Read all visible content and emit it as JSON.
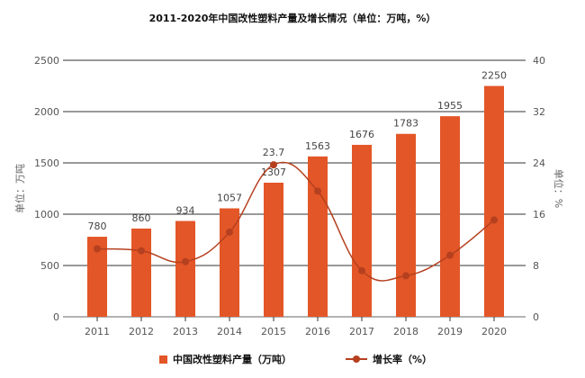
{
  "chart_data": {
    "type": "bar+line",
    "title": "2011-2020年中国改性塑料产量及增长情况（单位：万吨，%）",
    "categories": [
      "2011",
      "2012",
      "2013",
      "2014",
      "2015",
      "2016",
      "2017",
      "2018",
      "2019",
      "2020"
    ],
    "series": [
      {
        "name": "中国改性塑料产量（万吨）",
        "type": "bar",
        "axis": "left",
        "color": "#e35627",
        "values": [
          780,
          860,
          934,
          1057,
          1307,
          1563,
          1676,
          1783,
          1955,
          2250
        ]
      },
      {
        "name": "增长率（%）",
        "type": "line",
        "axis": "right",
        "color": "#b5401f",
        "values": [
          10.6,
          10.3,
          8.6,
          13.2,
          23.7,
          19.6,
          7.2,
          6.4,
          9.6,
          15.1
        ],
        "labeled_point": {
          "category": "2015",
          "label": "23.7"
        }
      }
    ],
    "left_axis": {
      "label": "单位：万吨",
      "ylim": [
        0,
        2500
      ],
      "ticks": [
        0,
        500,
        1000,
        1500,
        2000,
        2500
      ]
    },
    "right_axis": {
      "label": "单位：%",
      "ylim": [
        0,
        40
      ],
      "ticks": [
        0,
        8,
        16,
        24,
        32,
        40
      ]
    },
    "grid": true,
    "legend": "bottom"
  }
}
